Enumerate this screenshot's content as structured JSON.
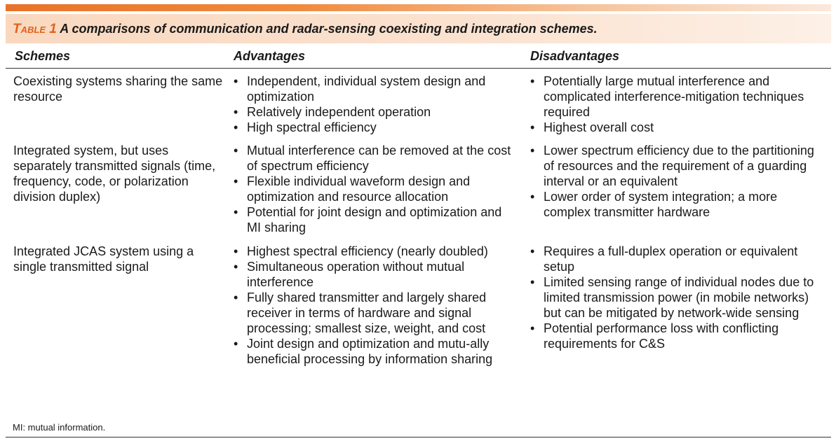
{
  "table": {
    "label": "Table 1",
    "title": "A comparisons of communication and radar-sensing coexisting and integration schemes.",
    "headers": {
      "schemes": "Schemes",
      "advantages": "Advantages",
      "disadvantages": "Disadvantages"
    },
    "rows": [
      {
        "scheme": "Coexisting systems sharing the same resource",
        "advantages": [
          "Independent, individual system design and optimization",
          "Relatively independent operation",
          "High spectral efficiency"
        ],
        "disadvantages": [
          "Potentially large mutual interference and complicated interference-mitigation techniques required",
          "Highest overall cost"
        ]
      },
      {
        "scheme": "Integrated system, but uses separately transmitted signals (time, frequency, code, or polarization division duplex)",
        "advantages": [
          "Mutual interference can be removed at the cost of spectrum efficiency",
          "Flexible individual waveform design and optimization and resource allocation",
          "Potential for joint design and optimization and MI sharing"
        ],
        "disadvantages": [
          "Lower spectrum efficiency due to the partitioning of resources and the requirement of a guarding interval or an equivalent",
          "Lower order of system integration; a more complex transmitter hardware"
        ]
      },
      {
        "scheme": "Integrated JCAS system using a single transmitted signal",
        "advantages": [
          "Highest spectral efficiency (nearly doubled)",
          "Simultaneous operation without mutual interference",
          "Fully shared transmitter and largely shared receiver in terms of hardware and signal processing; smallest size, weight, and cost",
          "Joint design and optimization and mutu-ally beneficial processing by information sharing"
        ],
        "disadvantages": [
          "Requires a full-duplex operation or equivalent setup",
          "Limited sensing range of individual nodes due to limited transmission power (in mobile networks) but can be mitigated by network-wide sensing",
          "Potential performance loss with conflicting requirements for C&S"
        ]
      }
    ],
    "footnote": "MI: mutual information."
  },
  "colors": {
    "accent": "#e2621b",
    "band": "#fbe3d1"
  }
}
